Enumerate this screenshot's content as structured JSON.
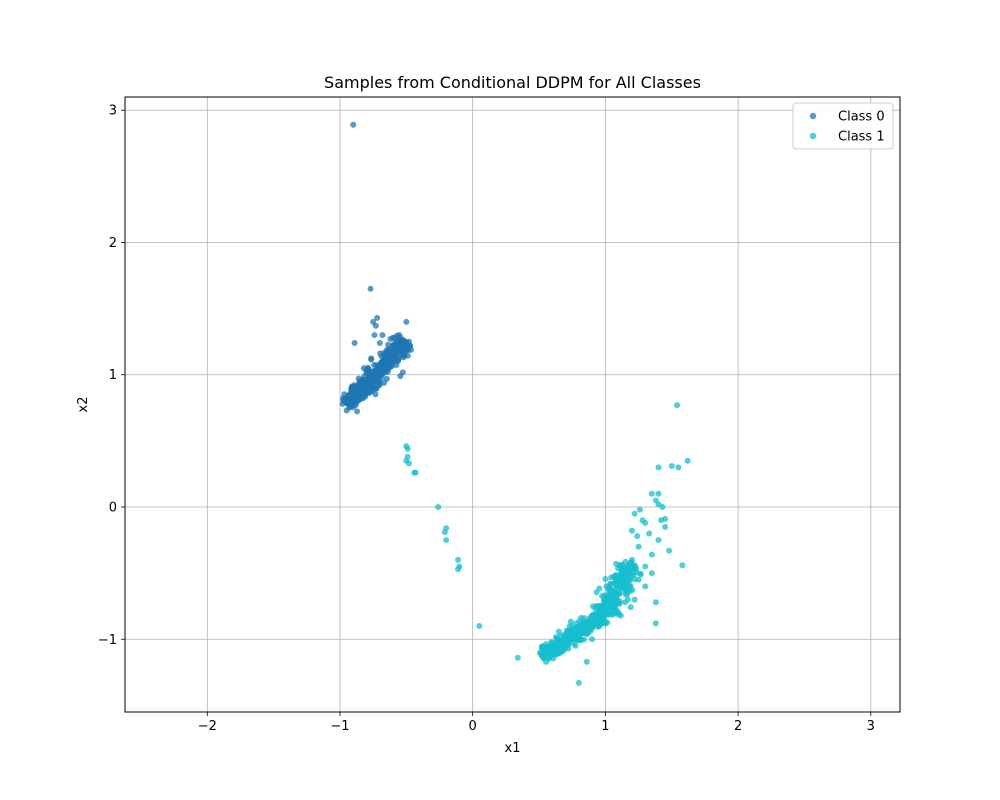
{
  "chart_data": {
    "type": "scatter",
    "title": "Samples from Conditional DDPM for All Classes",
    "xlabel": "x1",
    "ylabel": "x2",
    "xlim": [
      -2.62,
      3.22
    ],
    "ylim": [
      -1.55,
      3.1
    ],
    "xticks": [
      -2,
      -1,
      0,
      1,
      2,
      3
    ],
    "yticks": [
      -1,
      0,
      1,
      2,
      3
    ],
    "xtick_labels": [
      "−2",
      "−1",
      "0",
      "1",
      "2",
      "3"
    ],
    "ytick_labels": [
      "−1",
      "0",
      "1",
      "2",
      "3"
    ],
    "grid": true,
    "legend_position": "top-right",
    "series": [
      {
        "name": "Class 0",
        "color": "#1f77b4",
        "cluster": {
          "description": "dense elongated band",
          "from": [
            -0.95,
            0.78
          ],
          "to": [
            -0.5,
            1.25
          ],
          "count": 420,
          "spread": 0.035
        },
        "points": [
          [
            -0.9,
            2.89
          ],
          [
            -0.77,
            1.65
          ],
          [
            -0.72,
            1.43
          ],
          [
            -0.75,
            1.4
          ],
          [
            -0.73,
            1.37
          ],
          [
            -0.89,
            1.24
          ],
          [
            -0.5,
            1.4
          ],
          [
            -0.74,
            1.3
          ],
          [
            -0.98,
            0.78
          ],
          [
            -0.93,
            0.75
          ],
          [
            -0.95,
            0.73
          ],
          [
            -0.68,
            1.3
          ],
          [
            -0.6,
            1.28
          ],
          [
            -0.55,
            1.22
          ],
          [
            -0.48,
            1.25
          ],
          [
            -0.62,
            1.27
          ],
          [
            -0.7,
            1.24
          ],
          [
            -0.85,
            0.95
          ],
          [
            -0.88,
            0.9
          ],
          [
            -0.82,
            1.05
          ]
        ]
      },
      {
        "name": "Class 1",
        "color": "#17becf",
        "clusters": [
          {
            "description": "lower band",
            "from": [
              0.52,
              -1.13
            ],
            "to": [
              0.98,
              -0.82
            ],
            "count": 380,
            "spread": 0.03
          },
          {
            "description": "rising arm",
            "from": [
              0.98,
              -0.82
            ],
            "to": [
              1.2,
              -0.42
            ],
            "count": 220,
            "spread": 0.04
          }
        ],
        "points": [
          [
            1.54,
            0.77
          ],
          [
            1.62,
            0.35
          ],
          [
            1.5,
            0.31
          ],
          [
            1.55,
            0.3
          ],
          [
            1.4,
            0.3
          ],
          [
            -0.5,
            0.46
          ],
          [
            -0.49,
            0.44
          ],
          [
            -0.49,
            0.38
          ],
          [
            -0.5,
            0.35
          ],
          [
            -0.48,
            0.33
          ],
          [
            -0.44,
            0.26
          ],
          [
            -0.43,
            0.26
          ],
          [
            -0.26,
            0.0
          ],
          [
            -0.2,
            -0.16
          ],
          [
            -0.21,
            -0.19
          ],
          [
            -0.2,
            -0.25
          ],
          [
            -0.11,
            -0.4
          ],
          [
            -0.1,
            -0.45
          ],
          [
            -0.11,
            -0.47
          ],
          [
            0.05,
            -0.9
          ],
          [
            0.34,
            -1.14
          ],
          [
            0.8,
            -1.33
          ],
          [
            0.86,
            -1.17
          ],
          [
            1.38,
            -0.88
          ],
          [
            1.38,
            -0.72
          ],
          [
            1.58,
            -0.44
          ],
          [
            1.35,
            0.1
          ],
          [
            1.4,
            0.1
          ],
          [
            1.38,
            0.05
          ],
          [
            1.45,
            -0.09
          ],
          [
            1.43,
            0.0
          ],
          [
            1.48,
            -0.33
          ],
          [
            1.3,
            -0.45
          ],
          [
            1.25,
            -0.55
          ],
          [
            1.2,
            -0.18
          ],
          [
            1.33,
            -0.2
          ],
          [
            1.4,
            -0.25
          ],
          [
            1.22,
            -0.05
          ],
          [
            1.25,
            -0.3
          ],
          [
            1.3,
            -0.12
          ],
          [
            1.15,
            -0.72
          ],
          [
            1.22,
            -0.7
          ],
          [
            1.28,
            -0.1
          ],
          [
            1.35,
            -0.36
          ],
          [
            1.42,
            -0.1
          ],
          [
            1.2,
            -0.4
          ],
          [
            1.26,
            -0.02
          ],
          [
            1.18,
            -0.62
          ],
          [
            1.1,
            -0.8
          ],
          [
            1.3,
            -0.6
          ],
          [
            1.45,
            -0.15
          ],
          [
            1.35,
            -0.5
          ],
          [
            1.24,
            -0.22
          ],
          [
            1.4,
            0.02
          ],
          [
            0.9,
            -1.0
          ]
        ]
      }
    ]
  }
}
